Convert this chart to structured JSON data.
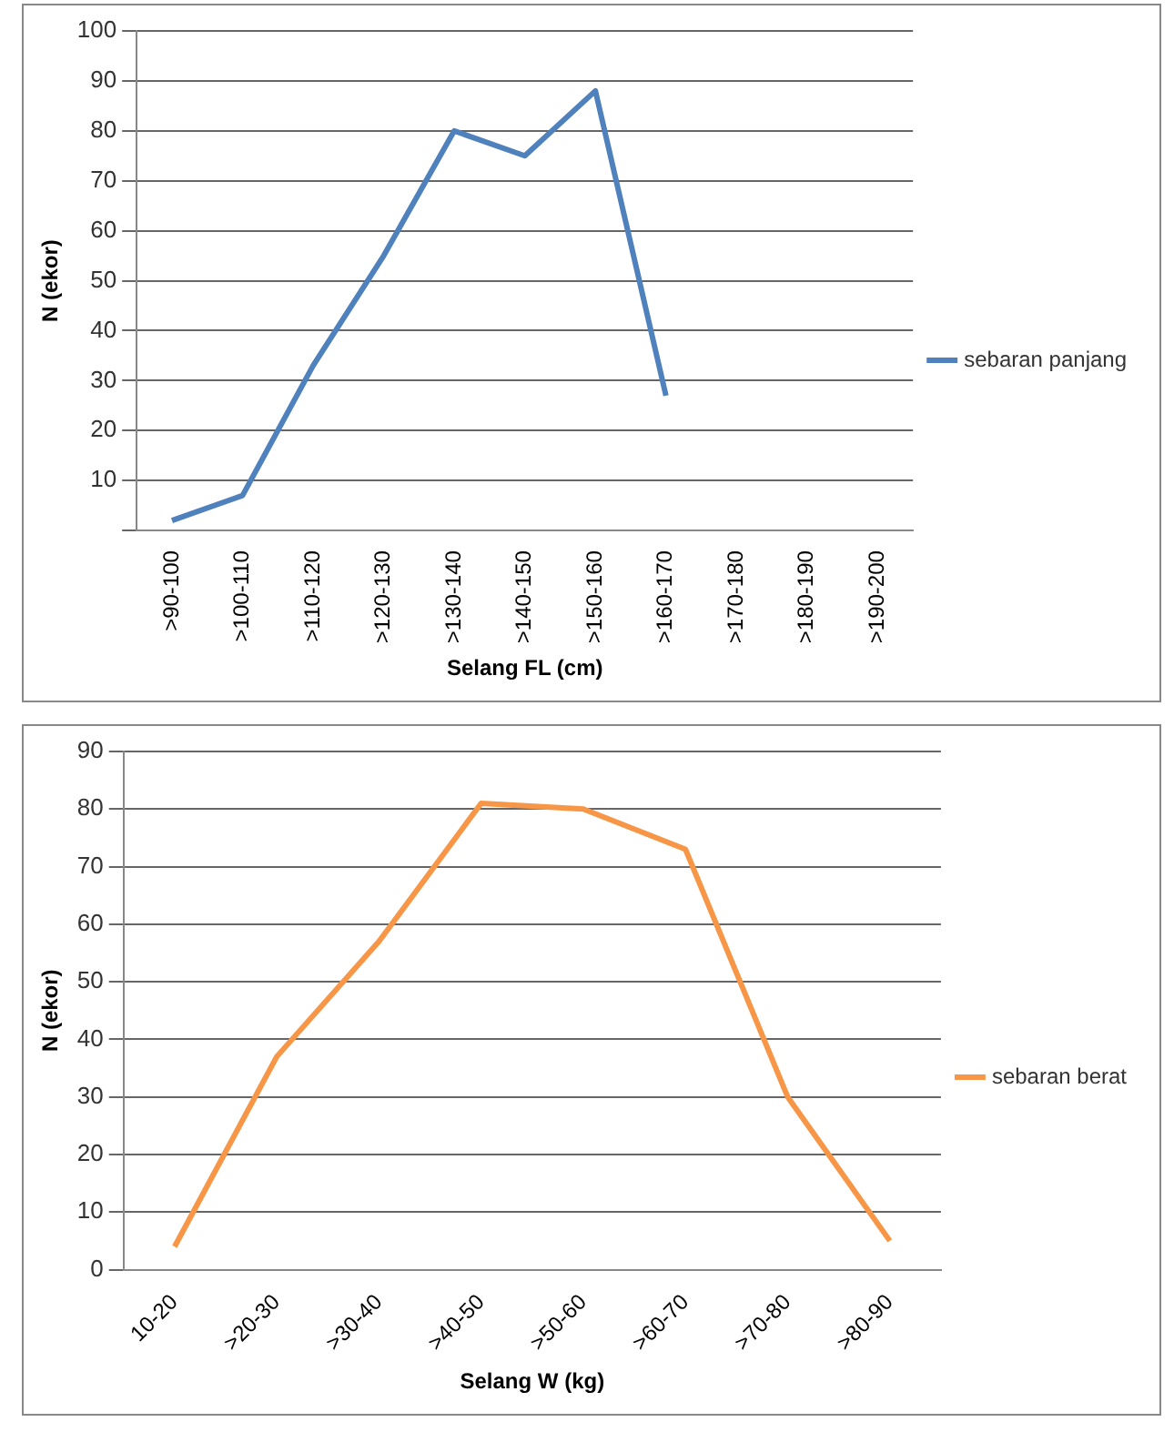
{
  "chart_data": [
    {
      "type": "line",
      "xlabel": "Selang FL (cm)",
      "ylabel": "N (ekor)",
      "categories": [
        ">90-100",
        ">100-110",
        ">110-120",
        ">120-130",
        ">130-140",
        ">140-150",
        ">150-160",
        ">160-170",
        ">170-180",
        ">180-190",
        ">190-200"
      ],
      "series": [
        {
          "name": "sebaran panjang",
          "color": "#4f81bd",
          "values": [
            2,
            7,
            33,
            55,
            80,
            75,
            88,
            27,
            null,
            null,
            null
          ]
        }
      ],
      "ylim": [
        0,
        100
      ],
      "yticks": [
        {
          "value": 0,
          "label": null
        },
        10,
        20,
        30,
        40,
        50,
        60,
        70,
        80,
        90,
        100
      ],
      "grid": "y",
      "legend": "right",
      "marker": "none"
    },
    {
      "type": "line",
      "xlabel": "Selang W (kg)",
      "ylabel": "N (ekor)",
      "categories": [
        "10-20",
        ">20-30",
        ">30-40",
        ">40-50",
        ">50-60",
        ">60-70",
        ">70-80",
        ">80-90"
      ],
      "series": [
        {
          "name": "sebaran berat",
          "color": "#f79646",
          "values": [
            4,
            37,
            57,
            81,
            80,
            73,
            30,
            5
          ]
        }
      ],
      "ylim": [
        0,
        90
      ],
      "yticks": [
        0,
        10,
        20,
        30,
        40,
        50,
        60,
        70,
        80,
        90
      ],
      "grid": "y",
      "legend": "right",
      "marker": "none"
    }
  ]
}
